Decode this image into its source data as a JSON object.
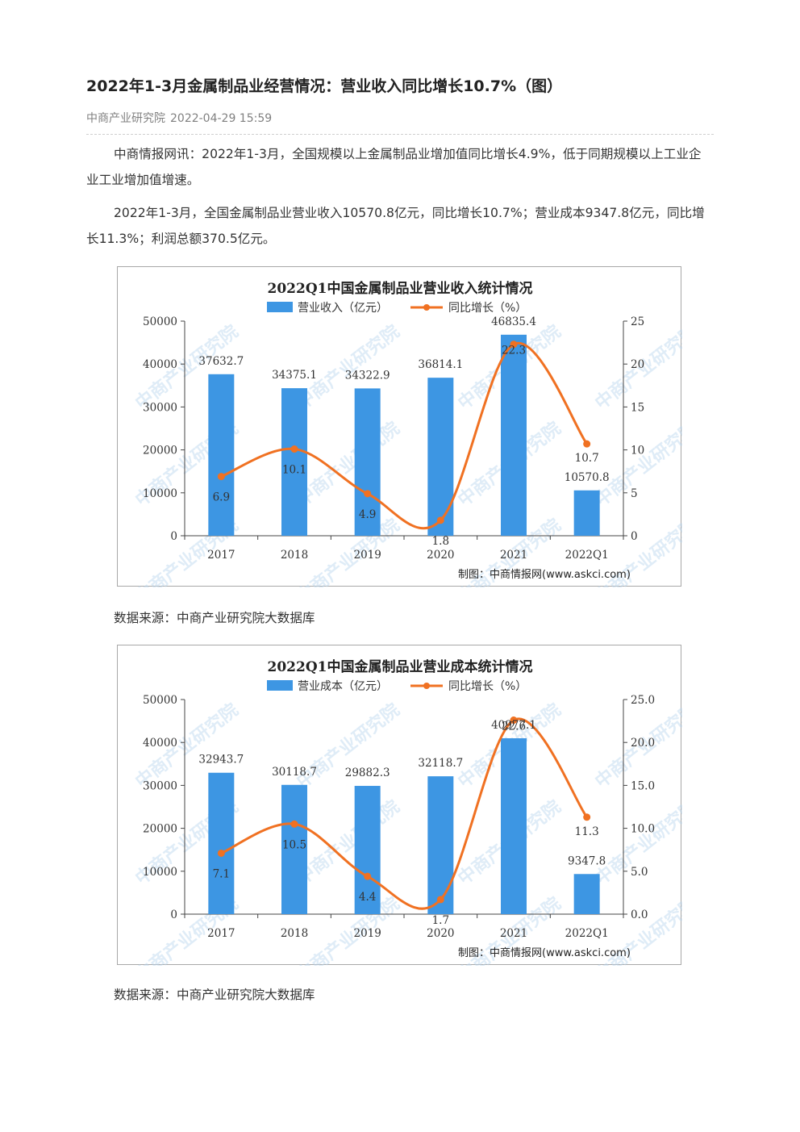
{
  "article": {
    "title": "2022年1-3月金属制品业经营情况：营业收入同比增长10.7%（图）",
    "source_name": "中商产业研究院",
    "datetime": "2022-04-29 15:59",
    "paragraphs": [
      "中商情报网讯：2022年1-3月，全国规模以上金属制品业增加值同比增长4.9%，低于同期规模以上工业企业工业增加值增速。",
      "2022年1-3月，全国金属制品业营业收入10570.8亿元，同比增长10.7%；营业成本9347.8亿元，同比增长11.3%；利润总额370.5亿元。"
    ],
    "chart_source_notes": [
      "数据来源：中商产业研究院大数据库",
      "数据来源：中商产业研究院大数据库"
    ]
  },
  "watermark_text": "中商产业研究院",
  "colors": {
    "bar": "#3d96e3",
    "line": "#f07122",
    "axis": "#444444"
  },
  "chart_data": [
    {
      "type": "bar",
      "title": "2022Q1中国金属制品业营业收入统计情况",
      "categories": [
        "2017",
        "2018",
        "2019",
        "2020",
        "2021",
        "2022Q1"
      ],
      "series": [
        {
          "name": "营业收入（亿元）",
          "type": "bar",
          "axis": "left",
          "values": [
            37632.7,
            34375.1,
            34322.9,
            36814.1,
            46835.4,
            10570.8
          ],
          "labels": [
            "37632.7",
            "34375.1",
            "34322.9",
            "36814.1",
            "46835.4",
            "10570.8"
          ]
        },
        {
          "name": "同比增长（%）",
          "type": "line",
          "axis": "right",
          "values": [
            6.9,
            10.1,
            4.9,
            1.8,
            22.3,
            10.7
          ],
          "labels": [
            "6.9",
            "10.1",
            "4.9",
            "1.8",
            "22.3",
            "10.7"
          ]
        }
      ],
      "ylim_left": [
        0,
        50000
      ],
      "ylim_right": [
        0,
        25
      ],
      "yticks_left": [
        "0",
        "10000",
        "20000",
        "30000",
        "40000",
        "50000"
      ],
      "yticks_right": [
        "0",
        "5",
        "10",
        "15",
        "20",
        "25"
      ],
      "legend": "top",
      "grid": false,
      "credit": "制图：中商情报网(www.askci.com)"
    },
    {
      "type": "bar",
      "title": "2022Q1中国金属制品业营业成本统计情况",
      "categories": [
        "2017",
        "2018",
        "2019",
        "2020",
        "2021",
        "2022Q1"
      ],
      "series": [
        {
          "name": "营业成本（亿元）",
          "type": "bar",
          "axis": "left",
          "values": [
            32943.7,
            30118.7,
            29882.3,
            32118.7,
            40977.1,
            9347.8
          ],
          "labels": [
            "32943.7",
            "30118.7",
            "29882.3",
            "32118.7",
            "40977.1",
            "9347.8"
          ]
        },
        {
          "name": "同比增长（%）",
          "type": "line",
          "axis": "right",
          "values": [
            7.1,
            10.5,
            4.4,
            1.7,
            22.6,
            11.3
          ],
          "labels": [
            "7.1",
            "10.5",
            "4.4",
            "1.7",
            "22.6",
            "11.3"
          ]
        }
      ],
      "ylim_left": [
        0,
        50000
      ],
      "ylim_right": [
        0,
        25
      ],
      "yticks_left": [
        "0",
        "10000",
        "20000",
        "30000",
        "40000",
        "50000"
      ],
      "yticks_right": [
        "0.0",
        "5.0",
        "10.0",
        "15.0",
        "20.0",
        "25.0"
      ],
      "legend": "top",
      "grid": false,
      "credit": "制图：中商情报网(www.askci.com)"
    }
  ]
}
